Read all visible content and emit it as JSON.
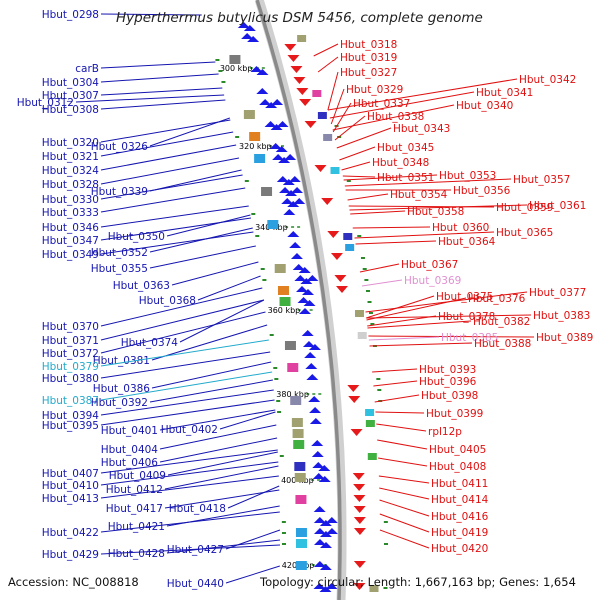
{
  "title": "Hyperthermus butylicus DSM 5456, complete genome",
  "footer": {
    "accession": "Accession: NC_008818",
    "topology": "Topology: circular; Length: 1,667,163 bp; Genes: 1,654"
  },
  "colors": {
    "left": "#1515b0",
    "right": "#e01010",
    "left_alt": "#22aacc",
    "right_alt": "#e090d0",
    "forward_strand": "#1a1ae6",
    "reverse_strand": "#e61a1a"
  },
  "scale_marks": [
    "300 kbp",
    "320 kbp",
    "340 kbp",
    "360 kbp",
    "380 kbp",
    "400 kbp",
    "420 kbp"
  ],
  "left_labels": [
    {
      "text": "Hbut_0298"
    },
    {
      "text": "carB"
    },
    {
      "text": "Hbut_0304"
    },
    {
      "text": "Hbut_0307"
    },
    {
      "text": "Hbut_0308"
    },
    {
      "text": "Hbut_0312"
    },
    {
      "text": "Hbut_0320"
    },
    {
      "text": "Hbut_0326"
    },
    {
      "text": "Hbut_0321"
    },
    {
      "text": "Hbut_0324"
    },
    {
      "text": "Hbut_0328"
    },
    {
      "text": "Hbut_0339"
    },
    {
      "text": "Hbut_0330"
    },
    {
      "text": "Hbut_0333"
    },
    {
      "text": "Hbut_0346"
    },
    {
      "text": "Hbut_0350"
    },
    {
      "text": "Hbut_0347"
    },
    {
      "text": "Hbut_0352"
    },
    {
      "text": "Hbut_0349"
    },
    {
      "text": "Hbut_0355"
    },
    {
      "text": "Hbut_0363"
    },
    {
      "text": "Hbut_0368"
    },
    {
      "text": "Hbut_0370"
    },
    {
      "text": "Hbut_0374"
    },
    {
      "text": "Hbut_0371"
    },
    {
      "text": "Hbut_0372"
    },
    {
      "text": "Hbut_0381"
    },
    {
      "text": "Hbut_0379",
      "alt": true
    },
    {
      "text": "Hbut_0380"
    },
    {
      "text": "Hbut_0386"
    },
    {
      "text": "Hbut_0387",
      "alt": true
    },
    {
      "text": "Hbut_0392"
    },
    {
      "text": "Hbut_0394"
    },
    {
      "text": "Hbut_0395"
    },
    {
      "text": "Hbut_0401"
    },
    {
      "text": "Hbut_0402"
    },
    {
      "text": "Hbut_0404"
    },
    {
      "text": "Hbut_0406"
    },
    {
      "text": "Hbut_0407"
    },
    {
      "text": "Hbut_0409"
    },
    {
      "text": "Hbut_0410"
    },
    {
      "text": "Hbut_0412"
    },
    {
      "text": "Hbut_0413"
    },
    {
      "text": "Hbut_0418"
    },
    {
      "text": "Hbut_0417"
    },
    {
      "text": "Hbut_0421"
    },
    {
      "text": "Hbut_0422"
    },
    {
      "text": "Hbut_0427"
    },
    {
      "text": "Hbut_0428"
    },
    {
      "text": "Hbut_0429"
    },
    {
      "text": "Hbut_0440"
    }
  ],
  "right_labels": [
    {
      "text": "Hbut_0318"
    },
    {
      "text": "Hbut_0319"
    },
    {
      "text": "Hbut_0327"
    },
    {
      "text": "Hbut_0342"
    },
    {
      "text": "Hbut_0329"
    },
    {
      "text": "Hbut_0341"
    },
    {
      "text": "Hbut_0337"
    },
    {
      "text": "Hbut_0340"
    },
    {
      "text": "Hbut_0338"
    },
    {
      "text": "Hbut_0343"
    },
    {
      "text": "Hbut_0345"
    },
    {
      "text": "Hbut_0348"
    },
    {
      "text": "Hbut_0351"
    },
    {
      "text": "Hbut_0353"
    },
    {
      "text": "Hbut_0357"
    },
    {
      "text": "Hbut_0356"
    },
    {
      "text": "Hbut_0354"
    },
    {
      "text": "Hbut_0359"
    },
    {
      "text": "Hbut_0361"
    },
    {
      "text": "Hbut_0358"
    },
    {
      "text": "Hbut_0360"
    },
    {
      "text": "Hbut_0365"
    },
    {
      "text": "Hbut_0364"
    },
    {
      "text": "Hbut_0367"
    },
    {
      "text": "Hbut_0369",
      "alt": true
    },
    {
      "text": "Hbut_0377"
    },
    {
      "text": "Hbut_0375"
    },
    {
      "text": "Hbut_0376"
    },
    {
      "text": "Hbut_0383"
    },
    {
      "text": "Hbut_0378"
    },
    {
      "text": "Hbut_0382"
    },
    {
      "text": "Hbut_0389"
    },
    {
      "text": "Hbut_0385",
      "alt": true
    },
    {
      "text": "Hbut_0388"
    },
    {
      "text": "Hbut_0393"
    },
    {
      "text": "Hbut_0396"
    },
    {
      "text": "Hbut_0398"
    },
    {
      "text": "Hbut_0399"
    },
    {
      "text": "rpl12p"
    },
    {
      "text": "Hbut_0405"
    },
    {
      "text": "Hbut_0408"
    },
    {
      "text": "Hbut_0411"
    },
    {
      "text": "Hbut_0414"
    },
    {
      "text": "Hbut_0416"
    },
    {
      "text": "Hbut_0419"
    },
    {
      "text": "Hbut_0420"
    }
  ]
}
